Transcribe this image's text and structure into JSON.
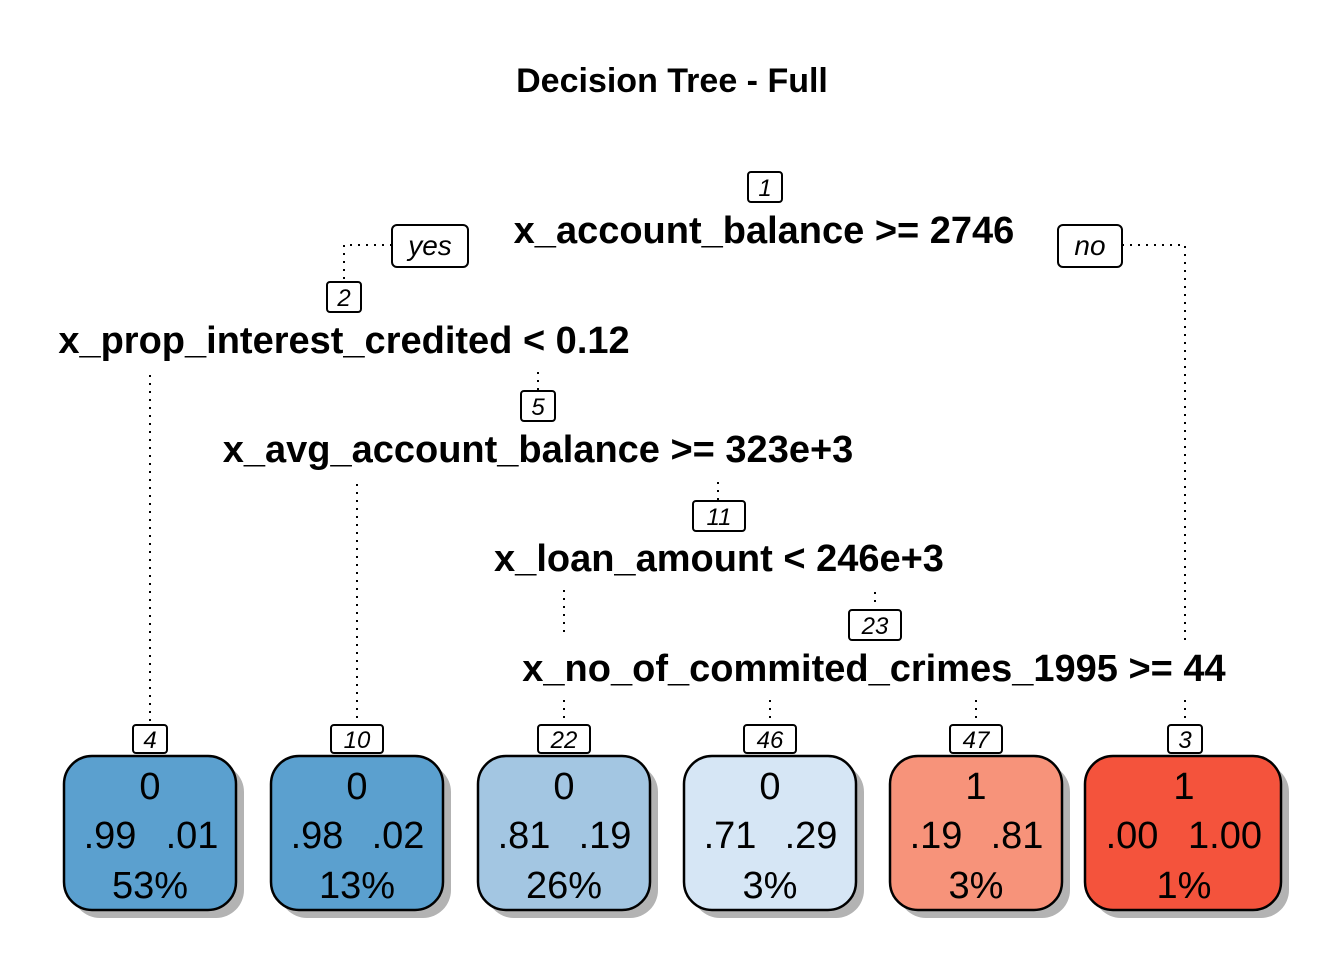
{
  "title": "Decision Tree - Full",
  "branch_labels": {
    "yes": "yes",
    "no": "no"
  },
  "splits": [
    {
      "id": "1",
      "text": "x_account_balance >= 2746"
    },
    {
      "id": "2",
      "text": "x_prop_interest_credited < 0.12"
    },
    {
      "id": "5",
      "text": "x_avg_account_balance >= 323e+3"
    },
    {
      "id": "11",
      "text": "x_loan_amount < 246e+3"
    },
    {
      "id": "23",
      "text": "x_no_of_commited_crimes_1995 >= 44"
    }
  ],
  "leaves": [
    {
      "id": "4",
      "cls": "0",
      "p0": ".99",
      "p1": ".01",
      "pct": "53%",
      "color": "#5ba0cf"
    },
    {
      "id": "10",
      "cls": "0",
      "p0": ".98",
      "p1": ".02",
      "pct": "13%",
      "color": "#5ba0cf"
    },
    {
      "id": "22",
      "cls": "0",
      "p0": ".81",
      "p1": ".19",
      "pct": "26%",
      "color": "#a3c6e2"
    },
    {
      "id": "46",
      "cls": "0",
      "p0": ".71",
      "p1": ".29",
      "pct": "3%",
      "color": "#d6e6f5"
    },
    {
      "id": "47",
      "cls": "1",
      "p0": ".19",
      "p1": ".81",
      "pct": "3%",
      "color": "#f7937a"
    },
    {
      "id": "3",
      "cls": "1",
      "p0": ".00",
      "p1": "1.00",
      "pct": "1%",
      "color": "#f4533c"
    }
  ]
}
